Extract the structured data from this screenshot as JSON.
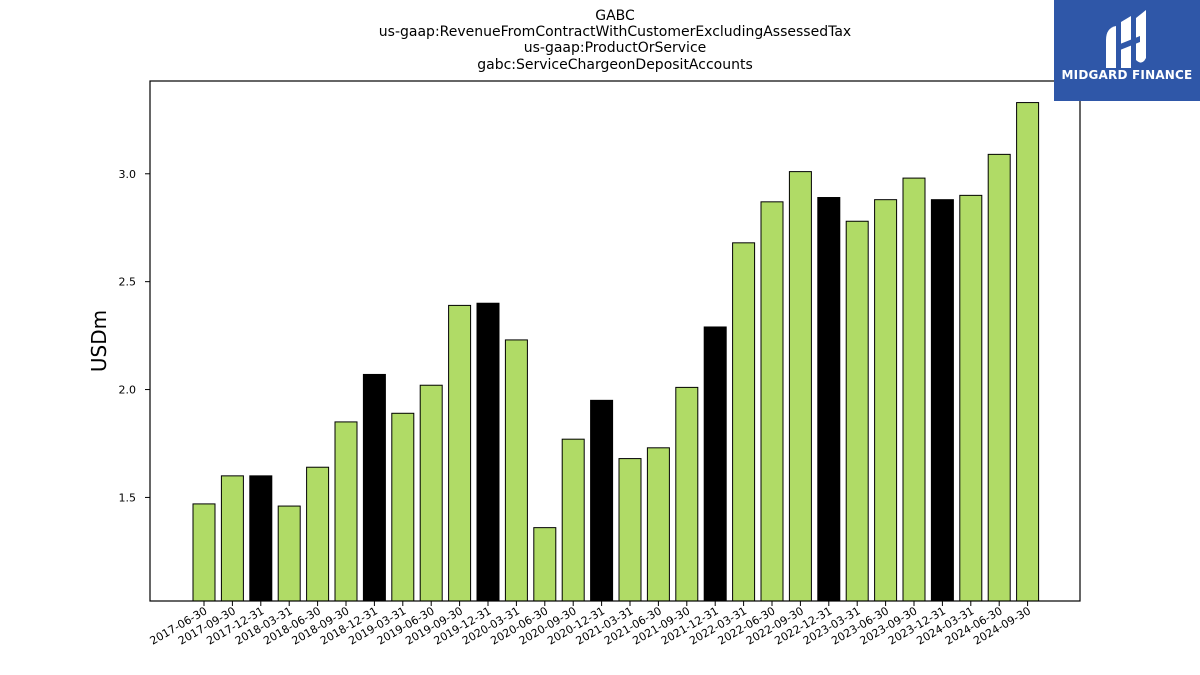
{
  "header": {
    "ticker": "GABC",
    "concept": "us-gaap:RevenueFromContractWithCustomerExcludingAssessedTax",
    "axis": "us-gaap:ProductOrService",
    "member": "gabc:ServiceChargeonDepositAccounts"
  },
  "logo": {
    "text": "MIDGARD FINANCE",
    "bg_color": "#2f57a8"
  },
  "colors": {
    "quarter_bar": "#b0db66",
    "year_end_bar": "#000000"
  },
  "chart_data": {
    "type": "bar",
    "title": "GABC us-gaap:RevenueFromContractWithCustomerExcludingAssessedTax us-gaap:ProductOrService gabc:ServiceChargeonDepositAccounts",
    "ylabel": "USDm",
    "ylim": [
      1.02,
      3.43
    ],
    "yticks": [
      "1.5",
      "2.0",
      "2.5",
      "3.0"
    ],
    "categories": [
      "2017-06-30",
      "2017-09-30",
      "2017-12-31",
      "2018-03-31",
      "2018-06-30",
      "2018-09-30",
      "2018-12-31",
      "2019-03-31",
      "2019-06-30",
      "2019-09-30",
      "2019-12-31",
      "2020-03-31",
      "2020-06-30",
      "2020-09-30",
      "2020-12-31",
      "2021-03-31",
      "2021-06-30",
      "2021-09-30",
      "2021-12-31",
      "2022-03-31",
      "2022-06-30",
      "2022-09-30",
      "2022-12-31",
      "2023-03-31",
      "2023-06-30",
      "2023-09-30",
      "2023-12-31",
      "2024-03-31",
      "2024-06-30",
      "2024-09-30"
    ],
    "values": [
      1.47,
      1.6,
      1.6,
      1.46,
      1.64,
      1.85,
      2.07,
      1.89,
      2.02,
      2.39,
      2.4,
      2.23,
      1.36,
      1.77,
      1.95,
      1.68,
      1.73,
      2.01,
      2.29,
      2.68,
      2.87,
      3.01,
      2.89,
      2.78,
      2.88,
      2.98,
      2.88,
      2.9,
      3.09,
      3.33
    ],
    "highlight": [
      false,
      false,
      true,
      false,
      false,
      false,
      true,
      false,
      false,
      false,
      true,
      false,
      false,
      false,
      true,
      false,
      false,
      false,
      true,
      false,
      false,
      false,
      true,
      false,
      false,
      false,
      true,
      false,
      false,
      false
    ],
    "grid": false,
    "legend": "none"
  }
}
